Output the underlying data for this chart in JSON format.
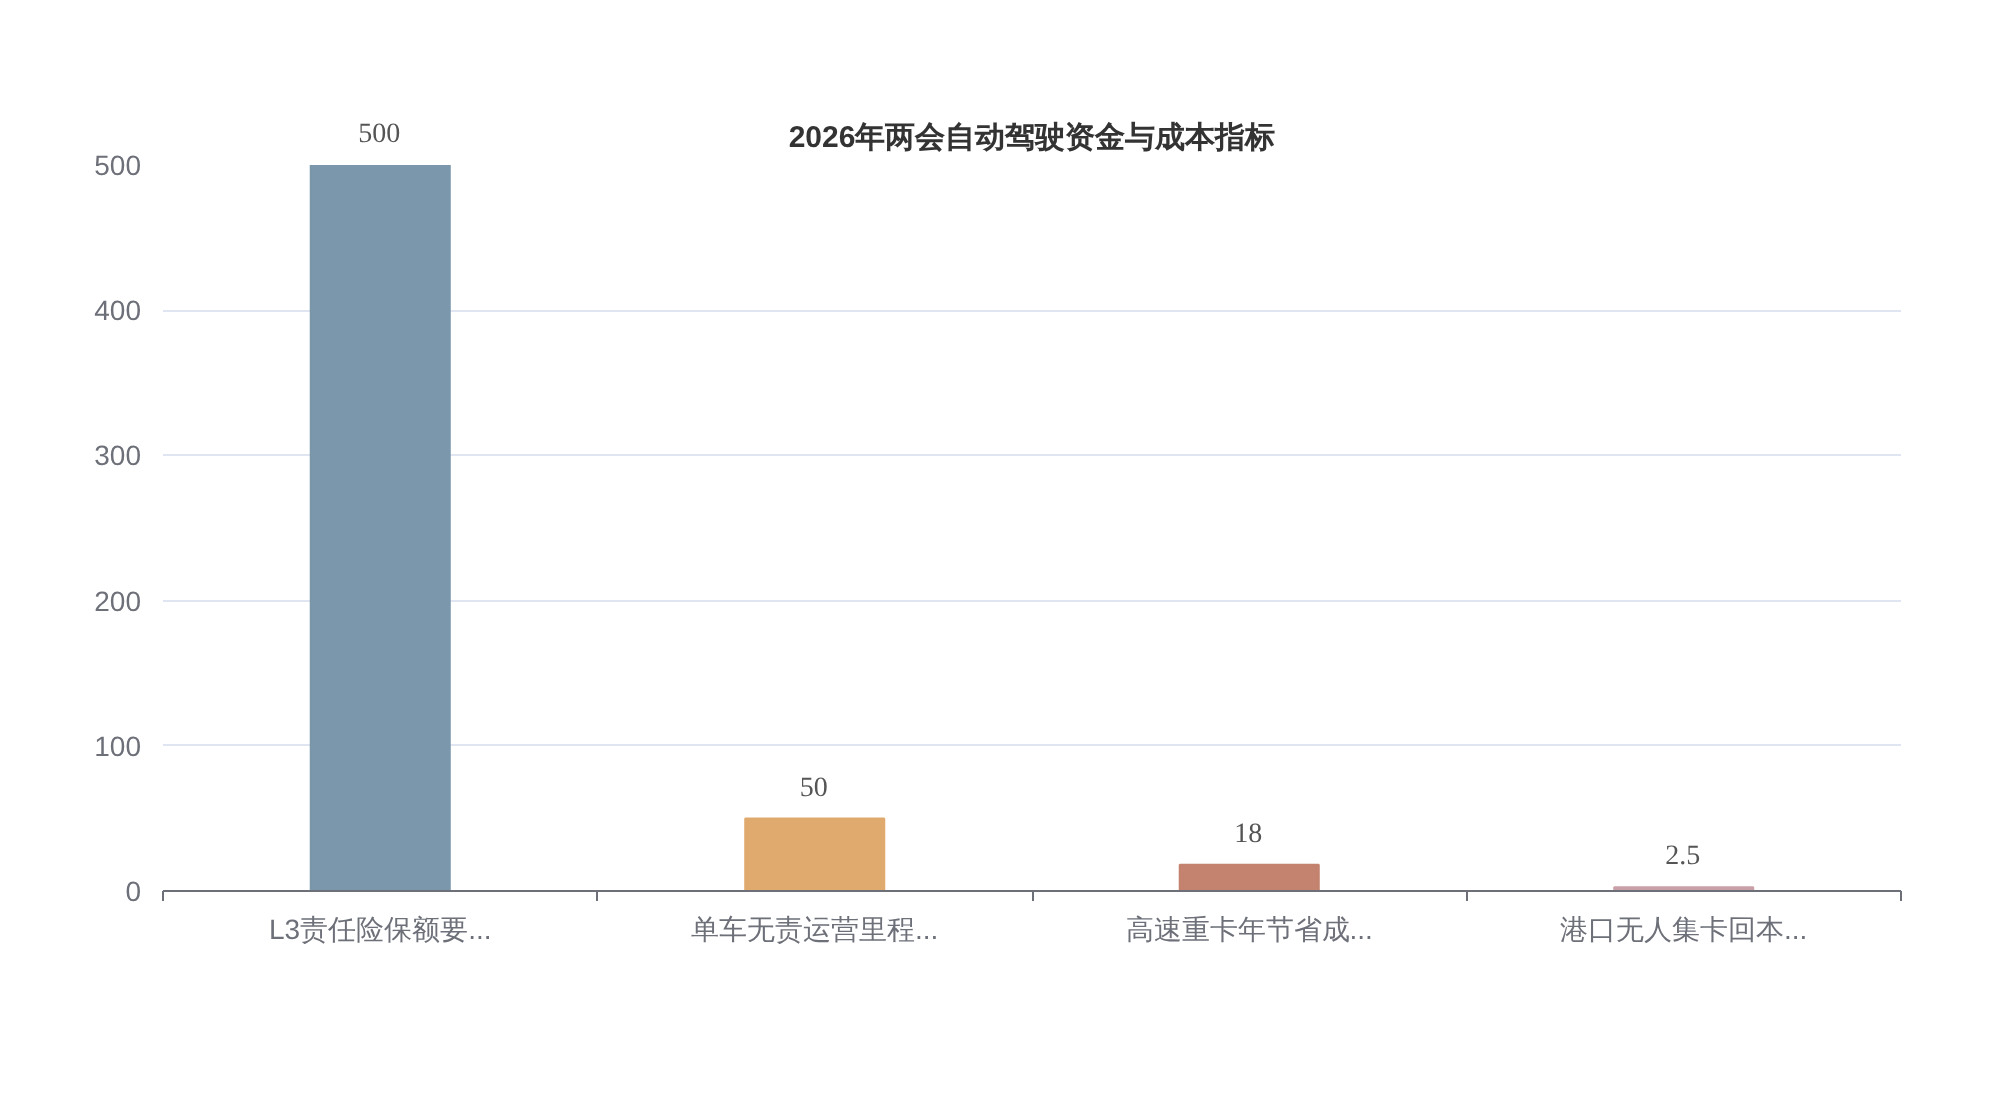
{
  "chart_data": {
    "type": "bar",
    "title": "2026年两会自动驾驶资金与成本指标",
    "categories": [
      "L3责任险保额要...",
      "单车无责运营里程...",
      "高速重卡年节省成...",
      "港口无人集卡回本..."
    ],
    "values": [
      500,
      50,
      18,
      2.5
    ],
    "colors": [
      "#7b97ab",
      "#e0a96d",
      "#c4836e",
      "#c9a0a8"
    ],
    "ylim": [
      0,
      500
    ],
    "yticks": [
      0,
      100,
      200,
      300,
      400,
      500
    ],
    "grid": "y",
    "data_labels": true,
    "legend": false
  }
}
